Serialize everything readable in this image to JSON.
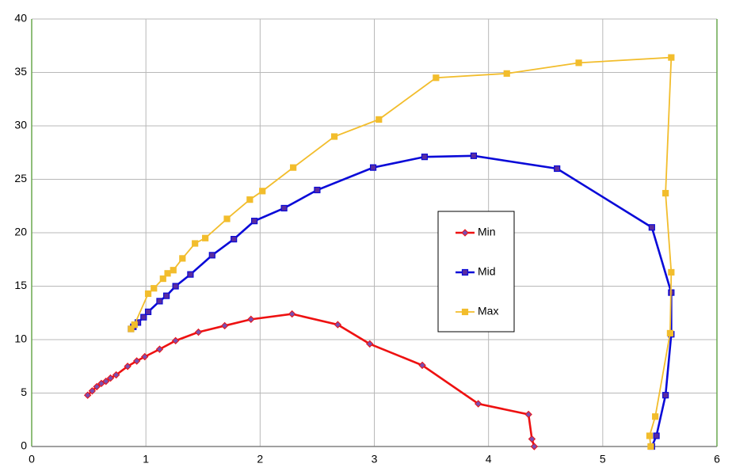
{
  "chart_data": {
    "type": "scatter-line",
    "xlim": [
      0,
      6
    ],
    "xticks": [
      0,
      1,
      2,
      3,
      4,
      5,
      6
    ],
    "ylim": [
      0,
      40
    ],
    "yticks": [
      0,
      5,
      10,
      15,
      20,
      25,
      30,
      35,
      40
    ],
    "grid": true,
    "legend": "center",
    "series": [
      {
        "name": "Min",
        "color": "#ee1111",
        "marker": "diamond",
        "x": [
          0.49,
          0.53,
          0.57,
          0.61,
          0.65,
          0.69,
          0.74,
          0.84,
          0.92,
          0.99,
          1.12,
          1.26,
          1.46,
          1.69,
          1.92,
          2.28,
          2.68,
          2.96,
          3.42,
          3.91,
          4.35,
          4.38,
          4.4
        ],
        "values": [
          4.8,
          5.2,
          5.6,
          5.9,
          6.1,
          6.4,
          6.7,
          7.5,
          8.0,
          8.4,
          9.1,
          9.9,
          10.7,
          11.3,
          11.9,
          12.4,
          11.4,
          9.6,
          7.6,
          4.0,
          3.0,
          0.7,
          0
        ]
      },
      {
        "name": "Mid",
        "color": "#0a0ad8",
        "marker": "square",
        "x": [
          0.87,
          0.89,
          0.93,
          0.98,
          1.02,
          1.12,
          1.18,
          1.26,
          1.39,
          1.58,
          1.77,
          1.95,
          2.21,
          2.5,
          2.99,
          3.44,
          3.87,
          4.6,
          5.43,
          5.6,
          5.6,
          5.55,
          5.47,
          5.43
        ],
        "values": [
          11.0,
          11.2,
          11.6,
          12.1,
          12.6,
          13.6,
          14.1,
          15.0,
          16.1,
          17.9,
          19.4,
          21.1,
          22.3,
          24.0,
          26.1,
          27.1,
          27.2,
          26.0,
          20.5,
          14.4,
          10.5,
          4.8,
          1.0,
          0
        ]
      },
      {
        "name": "Max",
        "color": "#f2bd2c",
        "marker": "square",
        "x": [
          0.87,
          0.9,
          1.02,
          1.07,
          1.15,
          1.19,
          1.24,
          1.32,
          1.43,
          1.52,
          1.71,
          1.91,
          2.02,
          2.29,
          2.65,
          3.04,
          3.54,
          4.16,
          4.79,
          5.6,
          5.55,
          5.6,
          5.59,
          5.46,
          5.41,
          5.42
        ],
        "values": [
          11.0,
          11.4,
          14.3,
          14.8,
          15.7,
          16.2,
          16.5,
          17.6,
          19.0,
          19.5,
          21.3,
          23.1,
          23.9,
          26.1,
          29.0,
          30.6,
          34.5,
          34.9,
          35.9,
          36.4,
          23.7,
          16.3,
          10.6,
          2.8,
          1.0,
          0
        ]
      }
    ]
  }
}
